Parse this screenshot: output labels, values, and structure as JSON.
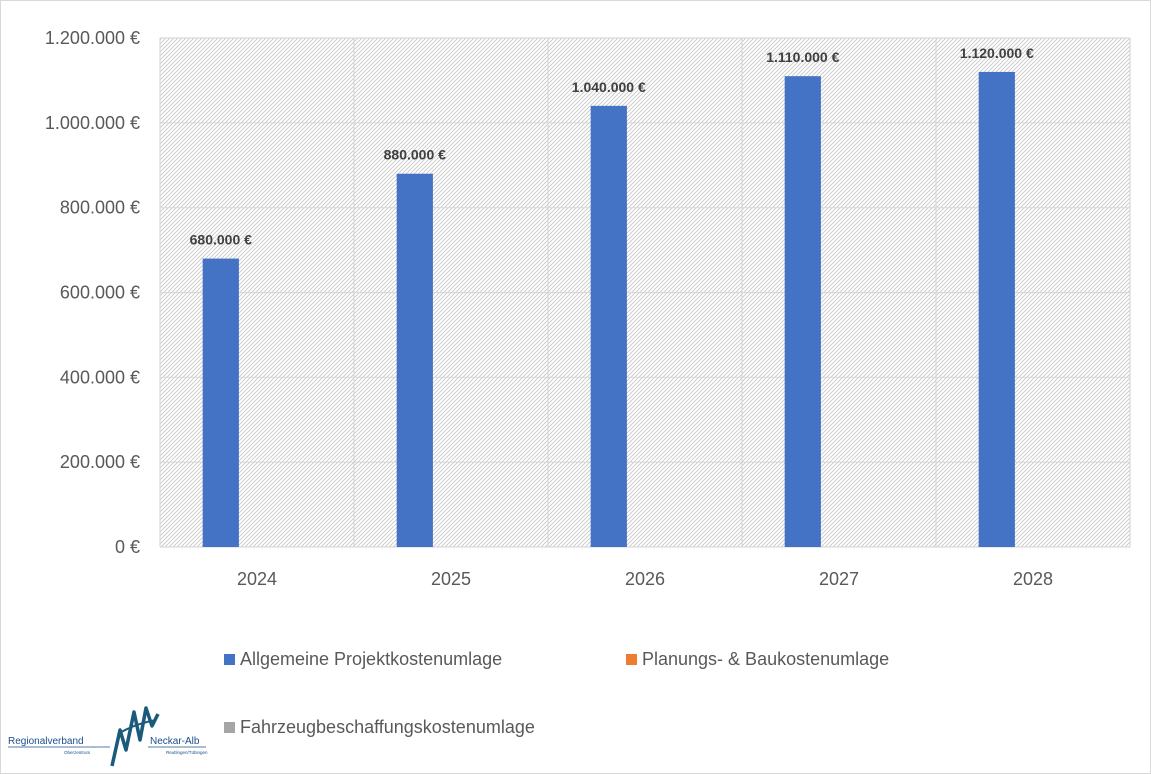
{
  "chart_data": {
    "type": "bar",
    "categories": [
      "2024",
      "2025",
      "2026",
      "2027",
      "2028"
    ],
    "series": [
      {
        "name": "Allgemeine Projektkostenumlage",
        "values": [
          680000,
          880000,
          1040000,
          1110000,
          1120000
        ],
        "color": "#4472c4"
      },
      {
        "name": "Planungs- & Baukostenumlage",
        "values": [
          0,
          0,
          0,
          0,
          0
        ],
        "color": "#ed7d31"
      },
      {
        "name": "Fahrzeugbeschaffungskostenumlage",
        "values": [
          0,
          0,
          0,
          0,
          0
        ],
        "color": "#a5a5a5"
      }
    ],
    "data_labels": [
      "680.000 €",
      "880.000 €",
      "1.040.000 €",
      "1.110.000 €",
      "1.120.000 €"
    ],
    "y_ticks": [
      "0 €",
      "200.000 €",
      "400.000 €",
      "600.000 €",
      "800.000 €",
      "1.000.000 €",
      "1.200.000 €"
    ],
    "ylim": [
      0,
      1200000
    ],
    "grid": true,
    "legend_position": "bottom"
  },
  "logo": {
    "left_text": "Regionalverband",
    "left_subtext": "Oberzentrum",
    "right_text": "Neckar-Alb",
    "right_subtext": "Reutlingen/Tübingen"
  }
}
